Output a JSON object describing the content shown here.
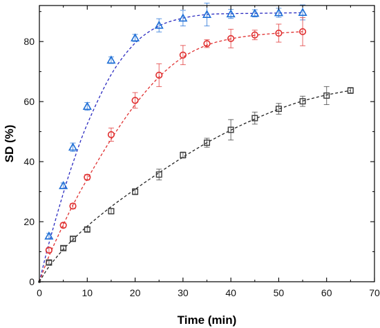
{
  "chart_data": {
    "type": "scatter",
    "title": "",
    "xlabel": "Time (min)",
    "ylabel": "SD (%)",
    "xlim": [
      0,
      70
    ],
    "ylim": [
      0,
      92
    ],
    "xticks": [
      0,
      10,
      20,
      30,
      40,
      50,
      60,
      70
    ],
    "yticks": [
      0,
      20,
      40,
      60,
      80
    ],
    "grid": false,
    "legend": "none",
    "series": [
      {
        "marker": "triangle",
        "color": "#1f6fd6",
        "fit_color": "#2a2ac0",
        "x": [
          0,
          2,
          5,
          7,
          10,
          15,
          20,
          25,
          30,
          35,
          40,
          45,
          50,
          55
        ],
        "y": [
          0,
          15.2,
          32.0,
          44.8,
          58.4,
          73.8,
          81.2,
          85.4,
          87.8,
          89.0,
          89.2,
          89.4,
          89.6,
          89.7
        ],
        "err": [
          0,
          0.9,
          0.9,
          1.4,
          1.3,
          1.1,
          1.2,
          2.2,
          2.6,
          3.8,
          1.5,
          1.2,
          1.5,
          2.5
        ],
        "fit": [
          [
            0,
            0
          ],
          [
            2,
            12.8
          ],
          [
            5,
            29.5
          ],
          [
            7,
            39.5
          ],
          [
            10,
            52.5
          ],
          [
            15,
            69.0
          ],
          [
            20,
            79.5
          ],
          [
            25,
            85.2
          ],
          [
            30,
            87.8
          ],
          [
            35,
            89.0
          ],
          [
            40,
            89.3
          ],
          [
            45,
            89.4
          ],
          [
            50,
            89.5
          ],
          [
            55,
            89.6
          ]
        ]
      },
      {
        "marker": "circle",
        "color": "#e03030",
        "fit_color": "#e03030",
        "x": [
          0,
          2,
          5,
          7,
          10,
          15,
          20,
          25,
          30,
          35,
          40,
          45,
          50,
          55
        ],
        "y": [
          0,
          10.5,
          18.8,
          25.2,
          34.8,
          49.0,
          60.4,
          68.8,
          75.5,
          79.3,
          81.0,
          82.2,
          82.8,
          83.3
        ],
        "err": [
          0,
          0.8,
          0.8,
          0.9,
          0.9,
          2.2,
          2.6,
          3.8,
          3.2,
          1.3,
          3.1,
          1.6,
          3.0,
          4.7
        ],
        "fit": [
          [
            0,
            0
          ],
          [
            2,
            8.5
          ],
          [
            5,
            19.0
          ],
          [
            7,
            25.5
          ],
          [
            10,
            34.2
          ],
          [
            15,
            47.5
          ],
          [
            20,
            59.0
          ],
          [
            25,
            68.2
          ],
          [
            30,
            74.8
          ],
          [
            35,
            78.8
          ],
          [
            40,
            80.9
          ],
          [
            45,
            82.1
          ],
          [
            50,
            82.8
          ],
          [
            55,
            83.3
          ]
        ]
      },
      {
        "marker": "square",
        "color": "#3a3a3a",
        "fit_color": "#222222",
        "x": [
          0,
          2,
          5,
          7,
          10,
          15,
          20,
          25,
          30,
          35,
          40,
          45,
          50,
          55,
          60,
          65
        ],
        "y": [
          0,
          6.4,
          11.2,
          14.3,
          17.4,
          23.5,
          30.0,
          35.7,
          42.2,
          46.3,
          50.6,
          54.5,
          57.6,
          60.1,
          62.0,
          63.7
        ],
        "err": [
          0,
          0.6,
          0.6,
          0.7,
          0.7,
          0.9,
          1.0,
          1.8,
          1.0,
          1.5,
          3.4,
          2.0,
          1.8,
          1.7,
          3.0,
          1.0
        ],
        "fit": [
          [
            0,
            0
          ],
          [
            2,
            5.0
          ],
          [
            5,
            10.8
          ],
          [
            7,
            14.0
          ],
          [
            10,
            18.5
          ],
          [
            15,
            25.0
          ],
          [
            20,
            30.8
          ],
          [
            25,
            36.3
          ],
          [
            30,
            41.5
          ],
          [
            35,
            46.3
          ],
          [
            40,
            50.5
          ],
          [
            45,
            54.2
          ],
          [
            50,
            57.5
          ],
          [
            55,
            60.2
          ],
          [
            60,
            62.2
          ],
          [
            65,
            63.7
          ]
        ]
      }
    ]
  }
}
